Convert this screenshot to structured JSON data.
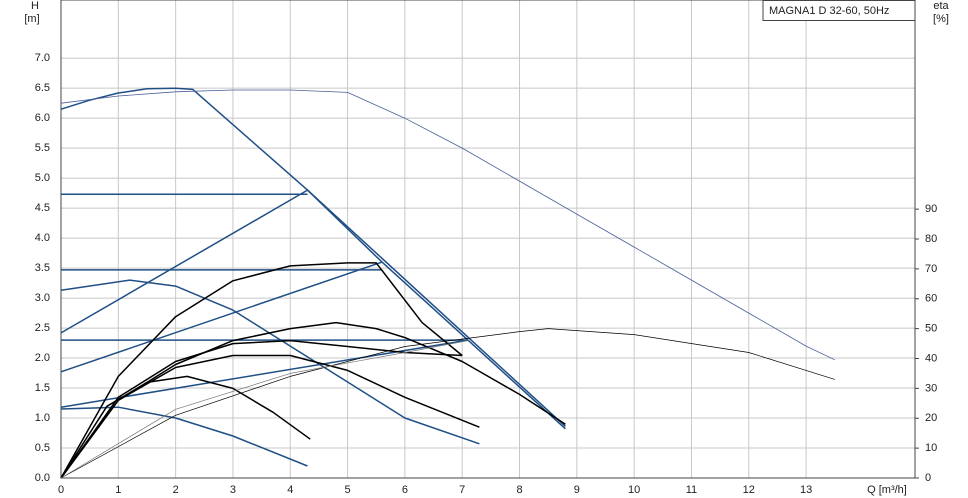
{
  "chart_data": {
    "type": "line",
    "y_label": "H",
    "y_unit": "[m]",
    "y2_label": "eta",
    "y2_unit": "[%]",
    "x_label": "Q [m³/h]",
    "annotation": "MAGNA1 D 32-60, 50Hz",
    "grid": true,
    "xlim": [
      0,
      14.9
    ],
    "xticks": [
      0,
      1,
      2,
      3,
      4,
      5,
      6,
      7,
      8,
      9,
      10,
      11,
      12,
      13
    ],
    "ylim": [
      0,
      7.97
    ],
    "yticks": [
      {
        "value": 0,
        "label": "0.0"
      },
      0.5,
      {
        "value": 1,
        "label": "1.0"
      },
      1.5,
      {
        "value": 2,
        "label": "2.0"
      },
      2.5,
      {
        "value": 3,
        "label": "3.0"
      },
      3.5,
      {
        "value": 4,
        "label": "4.0"
      },
      4.5,
      {
        "value": 5,
        "label": "5.0"
      },
      5.5,
      {
        "value": 6,
        "label": "6.0"
      },
      6.5,
      {
        "value": 7,
        "label": "7.0"
      }
    ],
    "y2lim": [
      0,
      160
    ],
    "y2ticks": [
      0,
      10,
      20,
      30,
      40,
      50,
      60,
      70,
      80,
      90
    ],
    "series": [
      {
        "color": "#1f4f85",
        "width": 1.5,
        "x": [
          0,
          0.5,
          1,
          1.5,
          2,
          2.3,
          4.3,
          5.6,
          7.1,
          8.8
        ],
        "values": [
          6.15,
          6.3,
          6.42,
          6.49,
          6.5,
          6.48,
          4.8,
          3.6,
          2.3,
          0.82
        ]
      },
      {
        "color": "#4a5f9a",
        "width": 0.8,
        "x": [
          0,
          1,
          2,
          3,
          4,
          5,
          6,
          7,
          8,
          9,
          10,
          11,
          12,
          13,
          13.5
        ],
        "values": [
          6.25,
          6.37,
          6.44,
          6.47,
          6.47,
          6.43,
          6.0,
          5.5,
          4.95,
          4.4,
          3.85,
          3.3,
          2.75,
          2.2,
          1.97
        ]
      },
      {
        "color": "#1f4f85",
        "width": 1.5,
        "x": [
          0,
          4.3
        ],
        "values": [
          4.73,
          4.73
        ]
      },
      {
        "color": "#1f4f85",
        "width": 1.5,
        "x": [
          0,
          5.6
        ],
        "values": [
          3.47,
          3.47
        ]
      },
      {
        "color": "#1f4f85",
        "width": 1.5,
        "x": [
          0,
          7.1
        ],
        "values": [
          2.3,
          2.3
        ]
      },
      {
        "color": "#1f4f85",
        "width": 1.5,
        "x": [
          0,
          4.3
        ],
        "values": [
          2.42,
          4.8
        ]
      },
      {
        "color": "#1f4f85",
        "width": 1.5,
        "x": [
          0,
          5.6
        ],
        "values": [
          1.77,
          3.6
        ]
      },
      {
        "color": "#1f4f85",
        "width": 1.5,
        "x": [
          0,
          7.1
        ],
        "values": [
          1.18,
          2.3
        ]
      },
      {
        "color": "#1f4f85",
        "width": 1.5,
        "x": [
          4.3,
          8.8
        ],
        "values": [
          4.8,
          0.86
        ]
      },
      {
        "color": "#1f4f85",
        "width": 1.5,
        "x": [
          0,
          1.2,
          2,
          3,
          4,
          5,
          6,
          7.3
        ],
        "values": [
          3.13,
          3.3,
          3.2,
          2.8,
          2.2,
          1.6,
          1.0,
          0.57
        ]
      },
      {
        "color": "#1f4f85",
        "width": 1.5,
        "x": [
          0,
          1,
          2,
          3,
          4.3
        ],
        "values": [
          1.15,
          1.18,
          1.0,
          0.7,
          0.2
        ]
      },
      {
        "color": "#000000",
        "width": 1.5,
        "axis": "y2",
        "x": [
          0,
          1,
          2,
          3,
          4,
          5,
          5.5,
          6.3,
          7
        ],
        "values": [
          0,
          34,
          54,
          66,
          71,
          72,
          72,
          52,
          41
        ]
      },
      {
        "color": "#000000",
        "width": 1.5,
        "axis": "y2",
        "x": [
          0,
          1,
          2,
          3,
          4,
          4.8,
          5.5,
          6,
          7,
          8,
          8.8
        ],
        "values": [
          0,
          26,
          38,
          46,
          50,
          52,
          50,
          47,
          39,
          28,
          18
        ]
      },
      {
        "color": "#000000",
        "width": 1.5,
        "axis": "y2",
        "x": [
          0,
          1,
          2,
          3,
          4,
          5,
          6,
          7
        ],
        "values": [
          0,
          27,
          39,
          45,
          46,
          44,
          42,
          41
        ]
      },
      {
        "color": "#000000",
        "width": 1.5,
        "axis": "y2",
        "x": [
          0,
          1,
          2,
          3,
          4,
          5,
          6,
          7.3
        ],
        "values": [
          0,
          26,
          37,
          41,
          41,
          36,
          27,
          17
        ]
      },
      {
        "color": "#000000",
        "width": 1.5,
        "axis": "y2",
        "x": [
          0,
          0.8,
          1.5,
          2.2,
          3,
          3.7,
          4.35
        ],
        "values": [
          0,
          24,
          32,
          34,
          30,
          22,
          13
        ]
      },
      {
        "color": "#000000",
        "width": 0.7,
        "axis": "y2",
        "x": [
          0,
          2,
          4,
          6,
          8,
          8.5,
          10,
          12,
          13.5
        ],
        "values": [
          0,
          21,
          34,
          44,
          49,
          50,
          48,
          42,
          33
        ]
      },
      {
        "color": "#777777",
        "width": 0.7,
        "axis": "y2",
        "x": [
          0,
          2,
          4,
          6,
          7.1
        ],
        "values": [
          0,
          23,
          35,
          42,
          46
        ]
      }
    ]
  }
}
